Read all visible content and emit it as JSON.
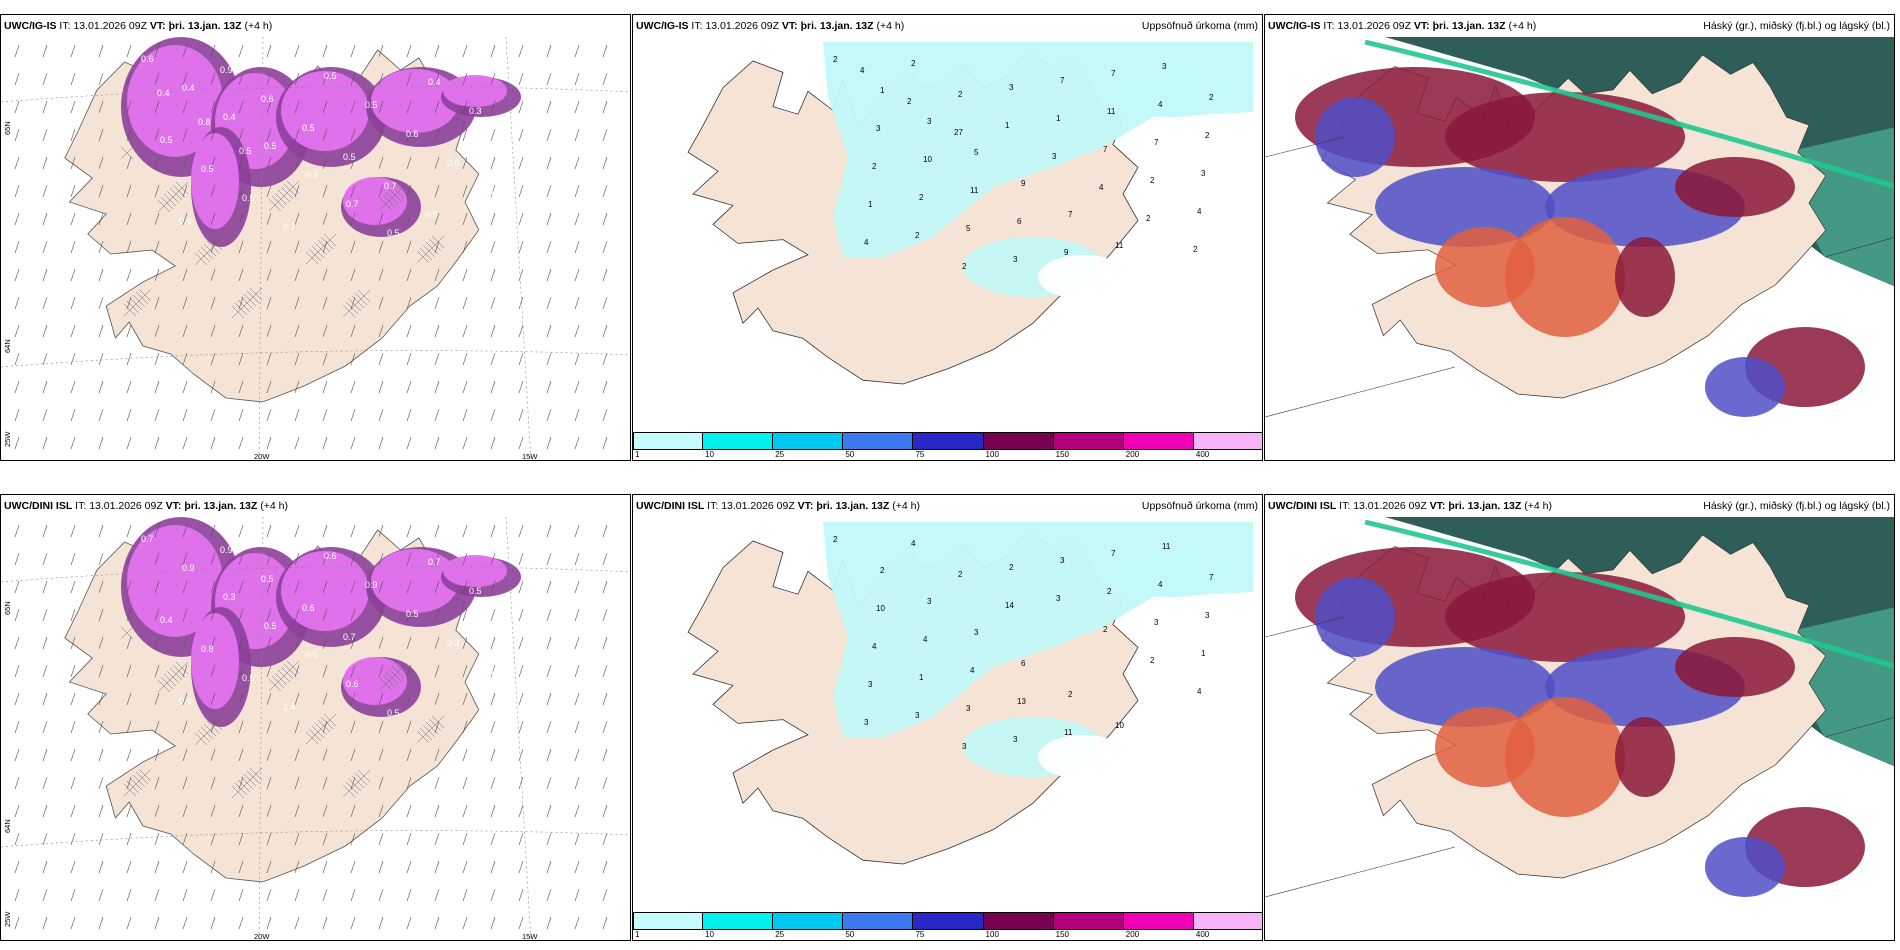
{
  "rows": [
    {
      "model": "UWC/IG-IS",
      "it_label": "IT:",
      "it_value": "13.01.2026 09Z",
      "vt_label": "VT:",
      "vt_value": "þri. 13.jan. 13Z",
      "lead": "(+4 h)",
      "precip_title": "Uppsöfnuð úrkoma (mm)",
      "cloud_title": "Háský (gr.), miðský (fj.bl.) og lágský (bl.)",
      "lat_labels": [
        "65N",
        "64N",
        "25W"
      ],
      "lon_labels": [
        "20W",
        "15W"
      ],
      "wind_values": [
        "0.6",
        "0.4",
        "0.4",
        "0.5",
        "0.3",
        "0.7",
        "0.5",
        "0.4",
        "0.3",
        "0.5",
        "0.5",
        "0.5",
        "0.7",
        "0.5",
        "0.5",
        "0.6",
        "0.6",
        "0.5",
        "0.4",
        "0.9",
        "0.6",
        "0.5",
        "0.5",
        "0.7",
        "0.5",
        "0.4",
        "0.4",
        "0.8",
        "0.5"
      ],
      "precip_values": [
        "2",
        "1",
        "3",
        "5",
        "9",
        "7",
        "11",
        "3",
        "2",
        "3",
        "10",
        "11",
        "6",
        "9",
        "7",
        "4",
        "2",
        "2",
        "2",
        "5",
        "3",
        "7",
        "11",
        "7",
        "3",
        "1",
        "2",
        "2",
        "3",
        "1",
        "7",
        "2",
        "4",
        "4",
        "2",
        "2",
        "1",
        "3",
        "4",
        "2",
        "2",
        "4",
        "2",
        "27"
      ]
    },
    {
      "model": "UWC/DINI ISL",
      "it_label": "IT:",
      "it_value": "13.01.2026 09Z",
      "vt_label": "VT:",
      "vt_value": "þri. 13.jan. 13Z",
      "lead": "(+4 h)",
      "precip_title": "Uppsöfnuð úrkoma (mm)",
      "cloud_title": "Háský (gr.), miðský (fj.bl.) og lágský (bl.)",
      "lat_labels": [
        "65N",
        "64N",
        "25W"
      ],
      "lon_labels": [
        "20W",
        "15W"
      ],
      "wind_values": [
        "0.7",
        "0.9",
        "0.3",
        "0.5",
        "0.5",
        "0.6",
        "0.5",
        "0.7",
        "0.5",
        "0.4",
        "0.8",
        "0.5",
        "1.4",
        "0.6",
        "0.9",
        "0.5",
        "0.3",
        "0.5",
        "0.4",
        "0.9",
        "0.5",
        "0.6",
        "0.7"
      ],
      "precip_values": [
        "2",
        "2",
        "3",
        "3",
        "6",
        "2",
        "10",
        "11",
        "7",
        "10",
        "4",
        "4",
        "13",
        "11",
        "7",
        "4",
        "3",
        "4",
        "1",
        "3",
        "3",
        "3",
        "2",
        "3",
        "1",
        "3",
        "3",
        "3",
        "2",
        "3",
        "2",
        "2",
        "4",
        "3",
        "4",
        "2",
        "14"
      ]
    }
  ],
  "colorbar": {
    "labels": [
      "1",
      "10",
      "25",
      "50",
      "75",
      "100",
      "150",
      "200",
      "400"
    ],
    "colors": [
      "#c8fcfc",
      "#00f0f0",
      "#00c8f0",
      "#3c78f0",
      "#2828c8",
      "#780050",
      "#b4007a",
      "#f000b4",
      "#f8b4f8"
    ]
  },
  "colors": {
    "land": "#f5e4d5",
    "ocean": "#ffffff",
    "precip_light": "#c2f8f8",
    "wind_magenta": "#e373ef",
    "wind_purple": "#8c3f9a",
    "high_cloud": "#2f5e58",
    "mid_cloud": "#4f4fc8",
    "low_cloud": "#8a1838",
    "cloud_orange": "#e06040"
  }
}
